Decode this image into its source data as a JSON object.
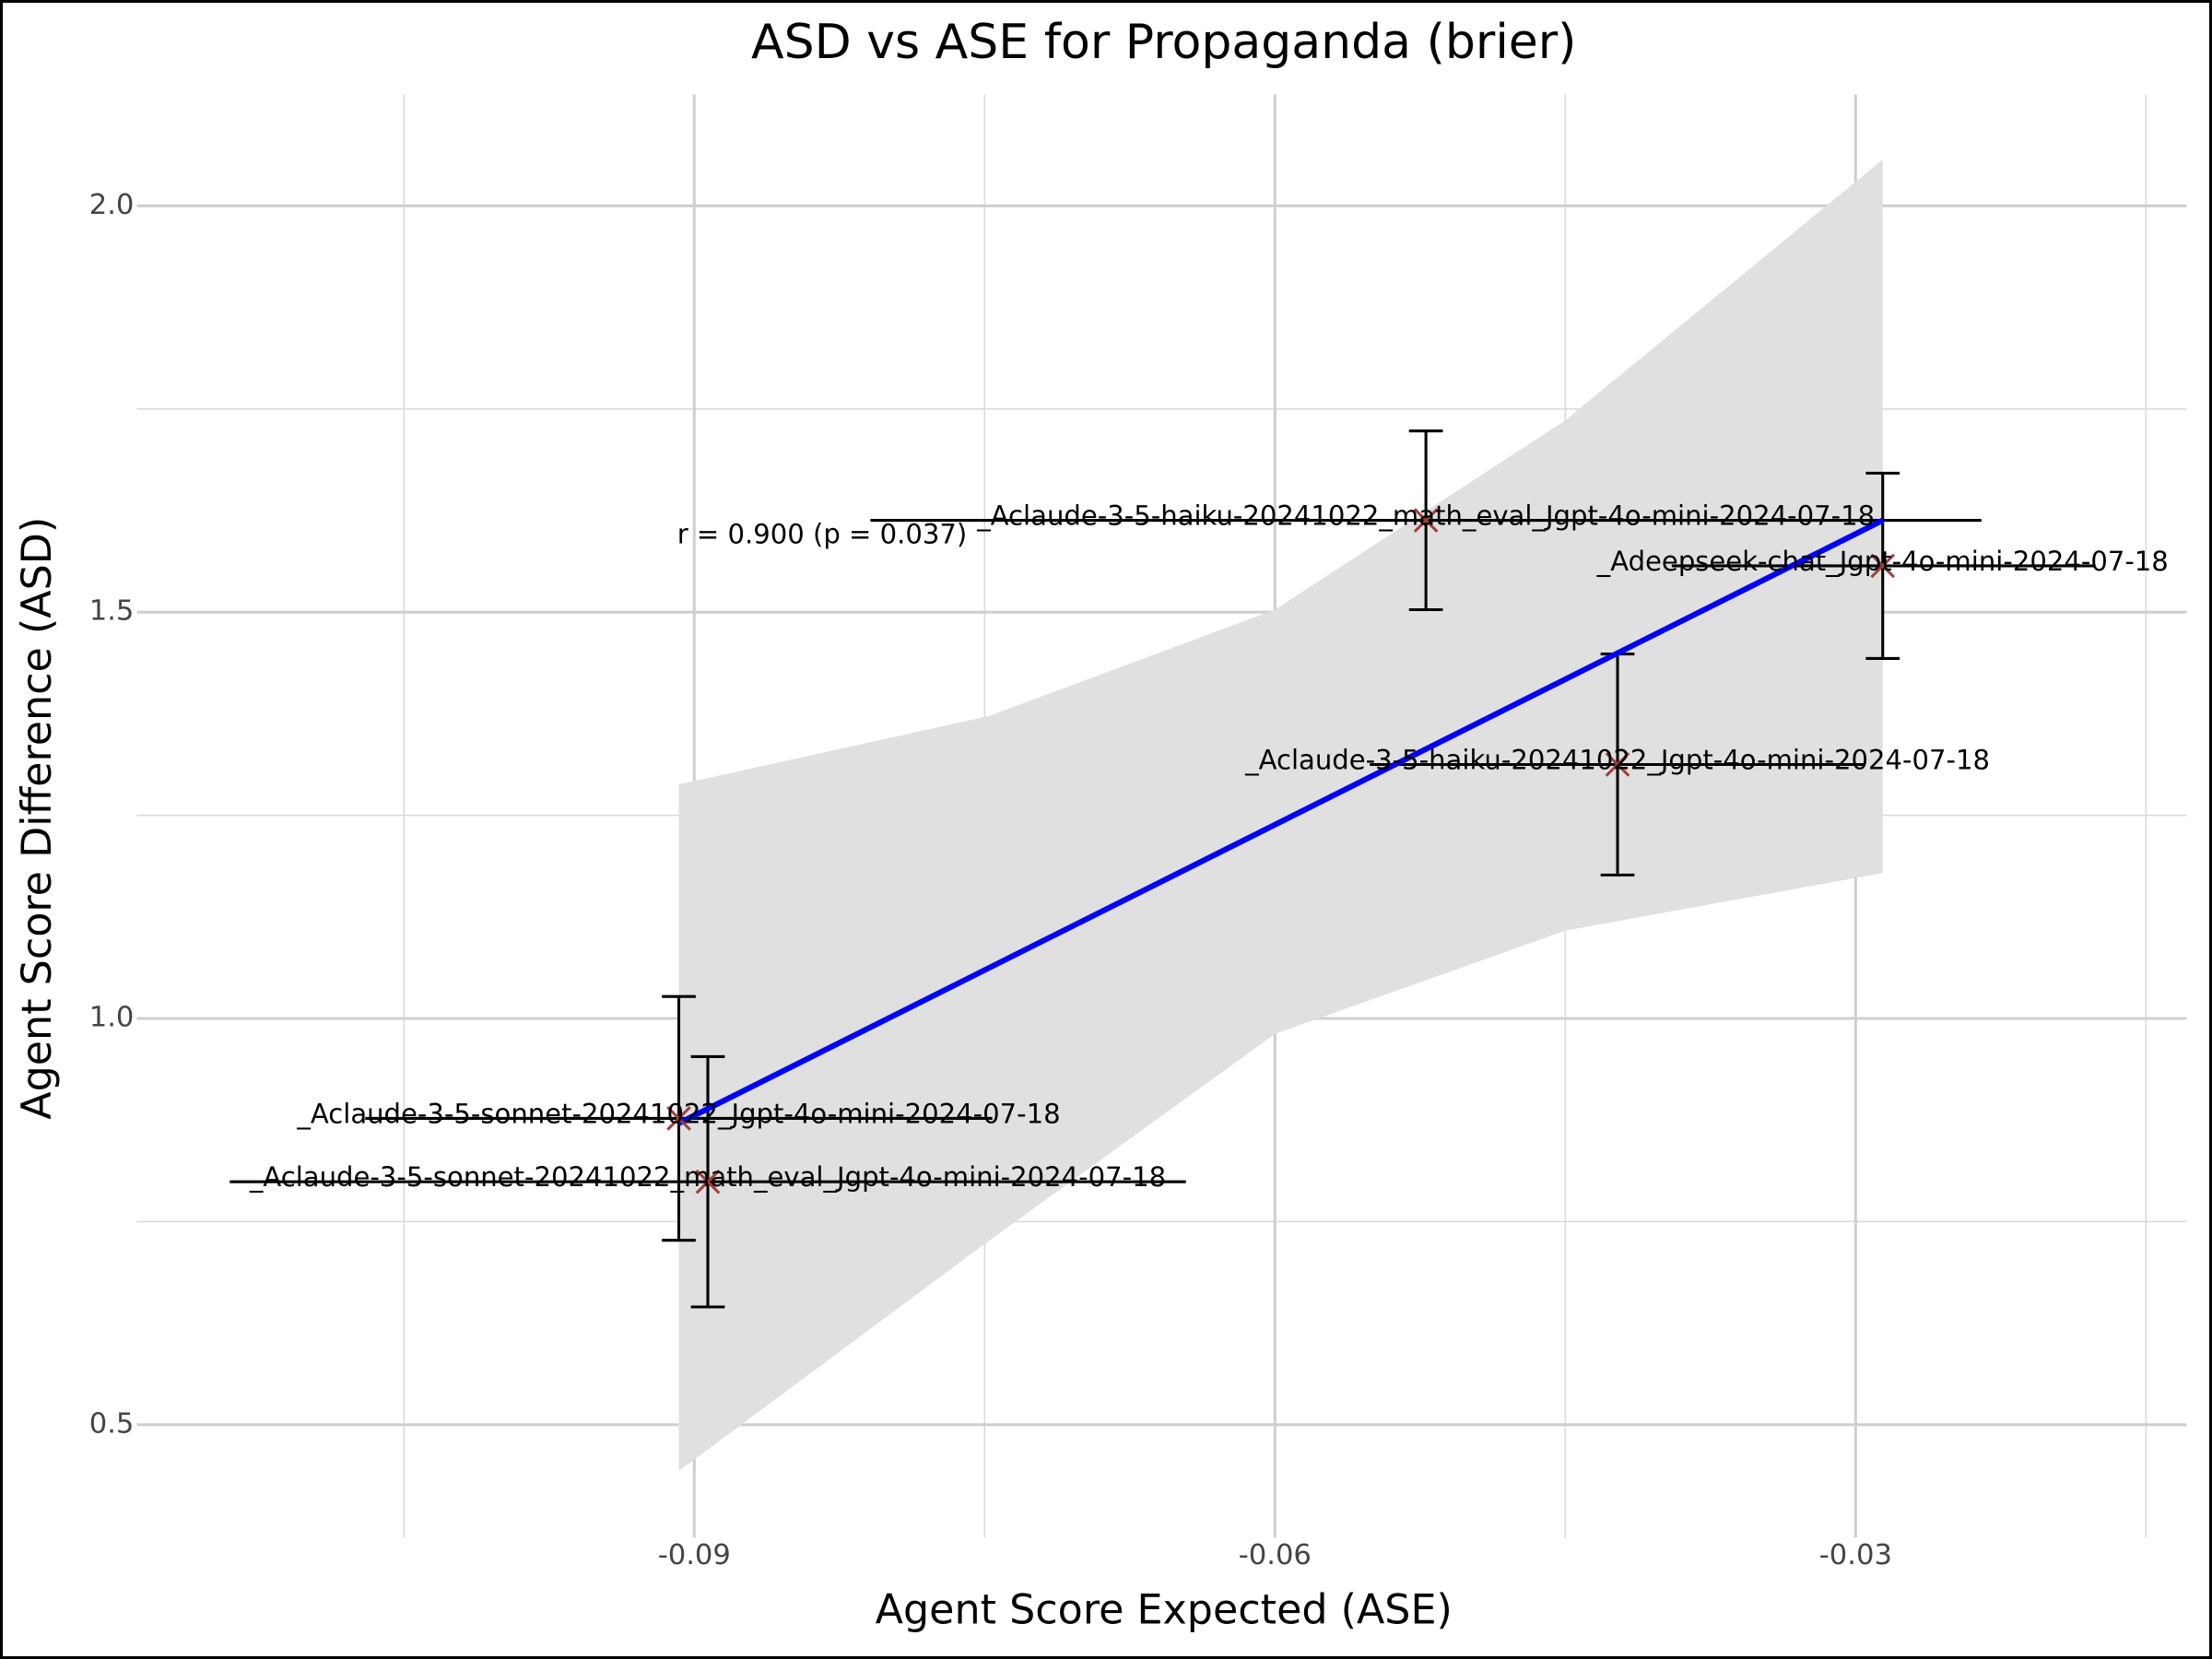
{
  "chart_data": {
    "type": "scatter",
    "title": "ASD vs ASE for Propaganda (brier)",
    "x_label": "Agent Score Expected (ASE)",
    "y_label": "Agent Score Difference (ASD)",
    "annotation": "r = 0.900 (p = 0.037)",
    "xlim": [
      -0.1188,
      -0.0129
    ],
    "ylim": [
      0.361,
      2.137
    ],
    "xticks": [
      -0.09,
      -0.06,
      -0.03
    ],
    "yticks": [
      {
        "value": 0.5,
        "label": "0.5"
      },
      {
        "value": 1.0,
        "label": "1.0"
      },
      {
        "value": 1.5,
        "label": "1.5"
      },
      {
        "value": 2.0,
        "label": "2.0"
      }
    ],
    "xminorticks": [
      -0.105,
      -0.075,
      -0.045,
      -0.015
    ],
    "yminorticks": [
      0.75,
      1.25,
      1.75
    ],
    "grid": true,
    "points": {
      "color": "#a0403c",
      "labels": [
        "_Aclaude-3-5-sonnet-20241022_math_eval_Jgpt-4o-mini-2024-07-18",
        "_Aclaude-3-5-sonnet-20241022_Jgpt-4o-mini-2024-07-18",
        "_Aclaude-3-5-haiku-20241022_math_eval_Jgpt-4o-mini-2024-07-18",
        "_Aclaude-3-5-haiku-20241022_Jgpt-4o-mini-2024-07-18",
        "_Adeepseek-chat_Jgpt-4o-mini-2024-07-18"
      ],
      "x": [
        -0.0893,
        -0.0908,
        -0.0522,
        -0.0423,
        -0.0286
      ],
      "y": [
        0.799,
        0.877,
        1.613,
        1.3125,
        1.557
      ],
      "xerr": [
        0.0247,
        0.0162,
        0.0287,
        0.0128,
        0.0109
      ],
      "yerr": [
        0.154,
        0.15,
        0.11,
        0.136,
        0.114
      ]
    },
    "fit": {
      "color": "#0000ff",
      "x": [
        -0.0908,
        -0.0286
      ],
      "y": [
        0.871,
        1.613
      ]
    },
    "band": {
      "color": "#e0e0e0",
      "x": [
        -0.0908,
        -0.0748,
        -0.06,
        -0.045,
        -0.0286
      ],
      "upper": [
        1.288,
        1.372,
        1.503,
        1.736,
        2.057
      ],
      "lower": [
        0.443,
        0.726,
        0.981,
        1.108,
        1.179
      ]
    }
  }
}
